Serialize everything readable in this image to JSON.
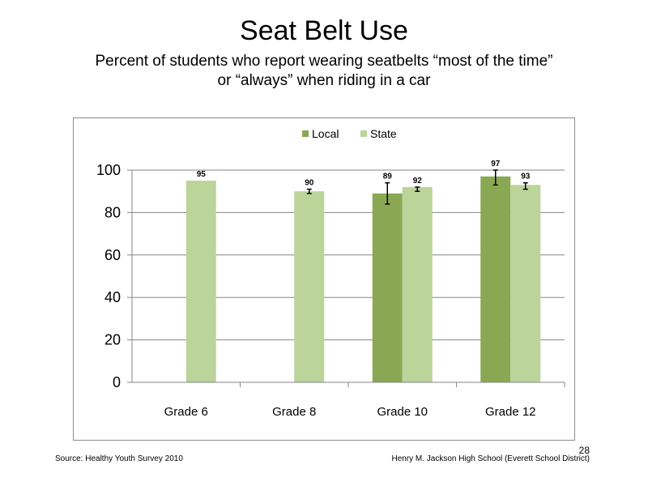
{
  "slide": {
    "title": "Seat Belt Use",
    "subtitle_line1": "Percent of students who report wearing seatbelts “most of the time”",
    "subtitle_line2": "or “always” when riding in a car",
    "source": "Source: Healthy Youth Survey 2010",
    "school": "Henry M. Jackson High School (Everett School District)",
    "page_number": "28"
  },
  "chart_data": {
    "type": "bar",
    "categories": [
      "Grade 6",
      "Grade 8",
      "Grade 10",
      "Grade 12"
    ],
    "series": [
      {
        "name": "Local",
        "color": "#8aa853",
        "values": [
          null,
          null,
          89,
          97
        ],
        "error_low": [
          null,
          null,
          84,
          93
        ],
        "error_high": [
          null,
          null,
          94,
          100
        ]
      },
      {
        "name": "State",
        "color": "#bad49a",
        "values": [
          95,
          90,
          92,
          93
        ],
        "error_low": [
          null,
          89,
          90,
          91
        ],
        "error_high": [
          null,
          91,
          92,
          94
        ]
      }
    ],
    "data_labels": [
      [
        "",
        "",
        "89",
        "97"
      ],
      [
        "95",
        "90",
        "92",
        "93"
      ]
    ],
    "ylim": [
      0,
      100
    ],
    "yticks": [
      0,
      20,
      40,
      60,
      80,
      100
    ],
    "grid": true,
    "legend_position": "top-center"
  }
}
